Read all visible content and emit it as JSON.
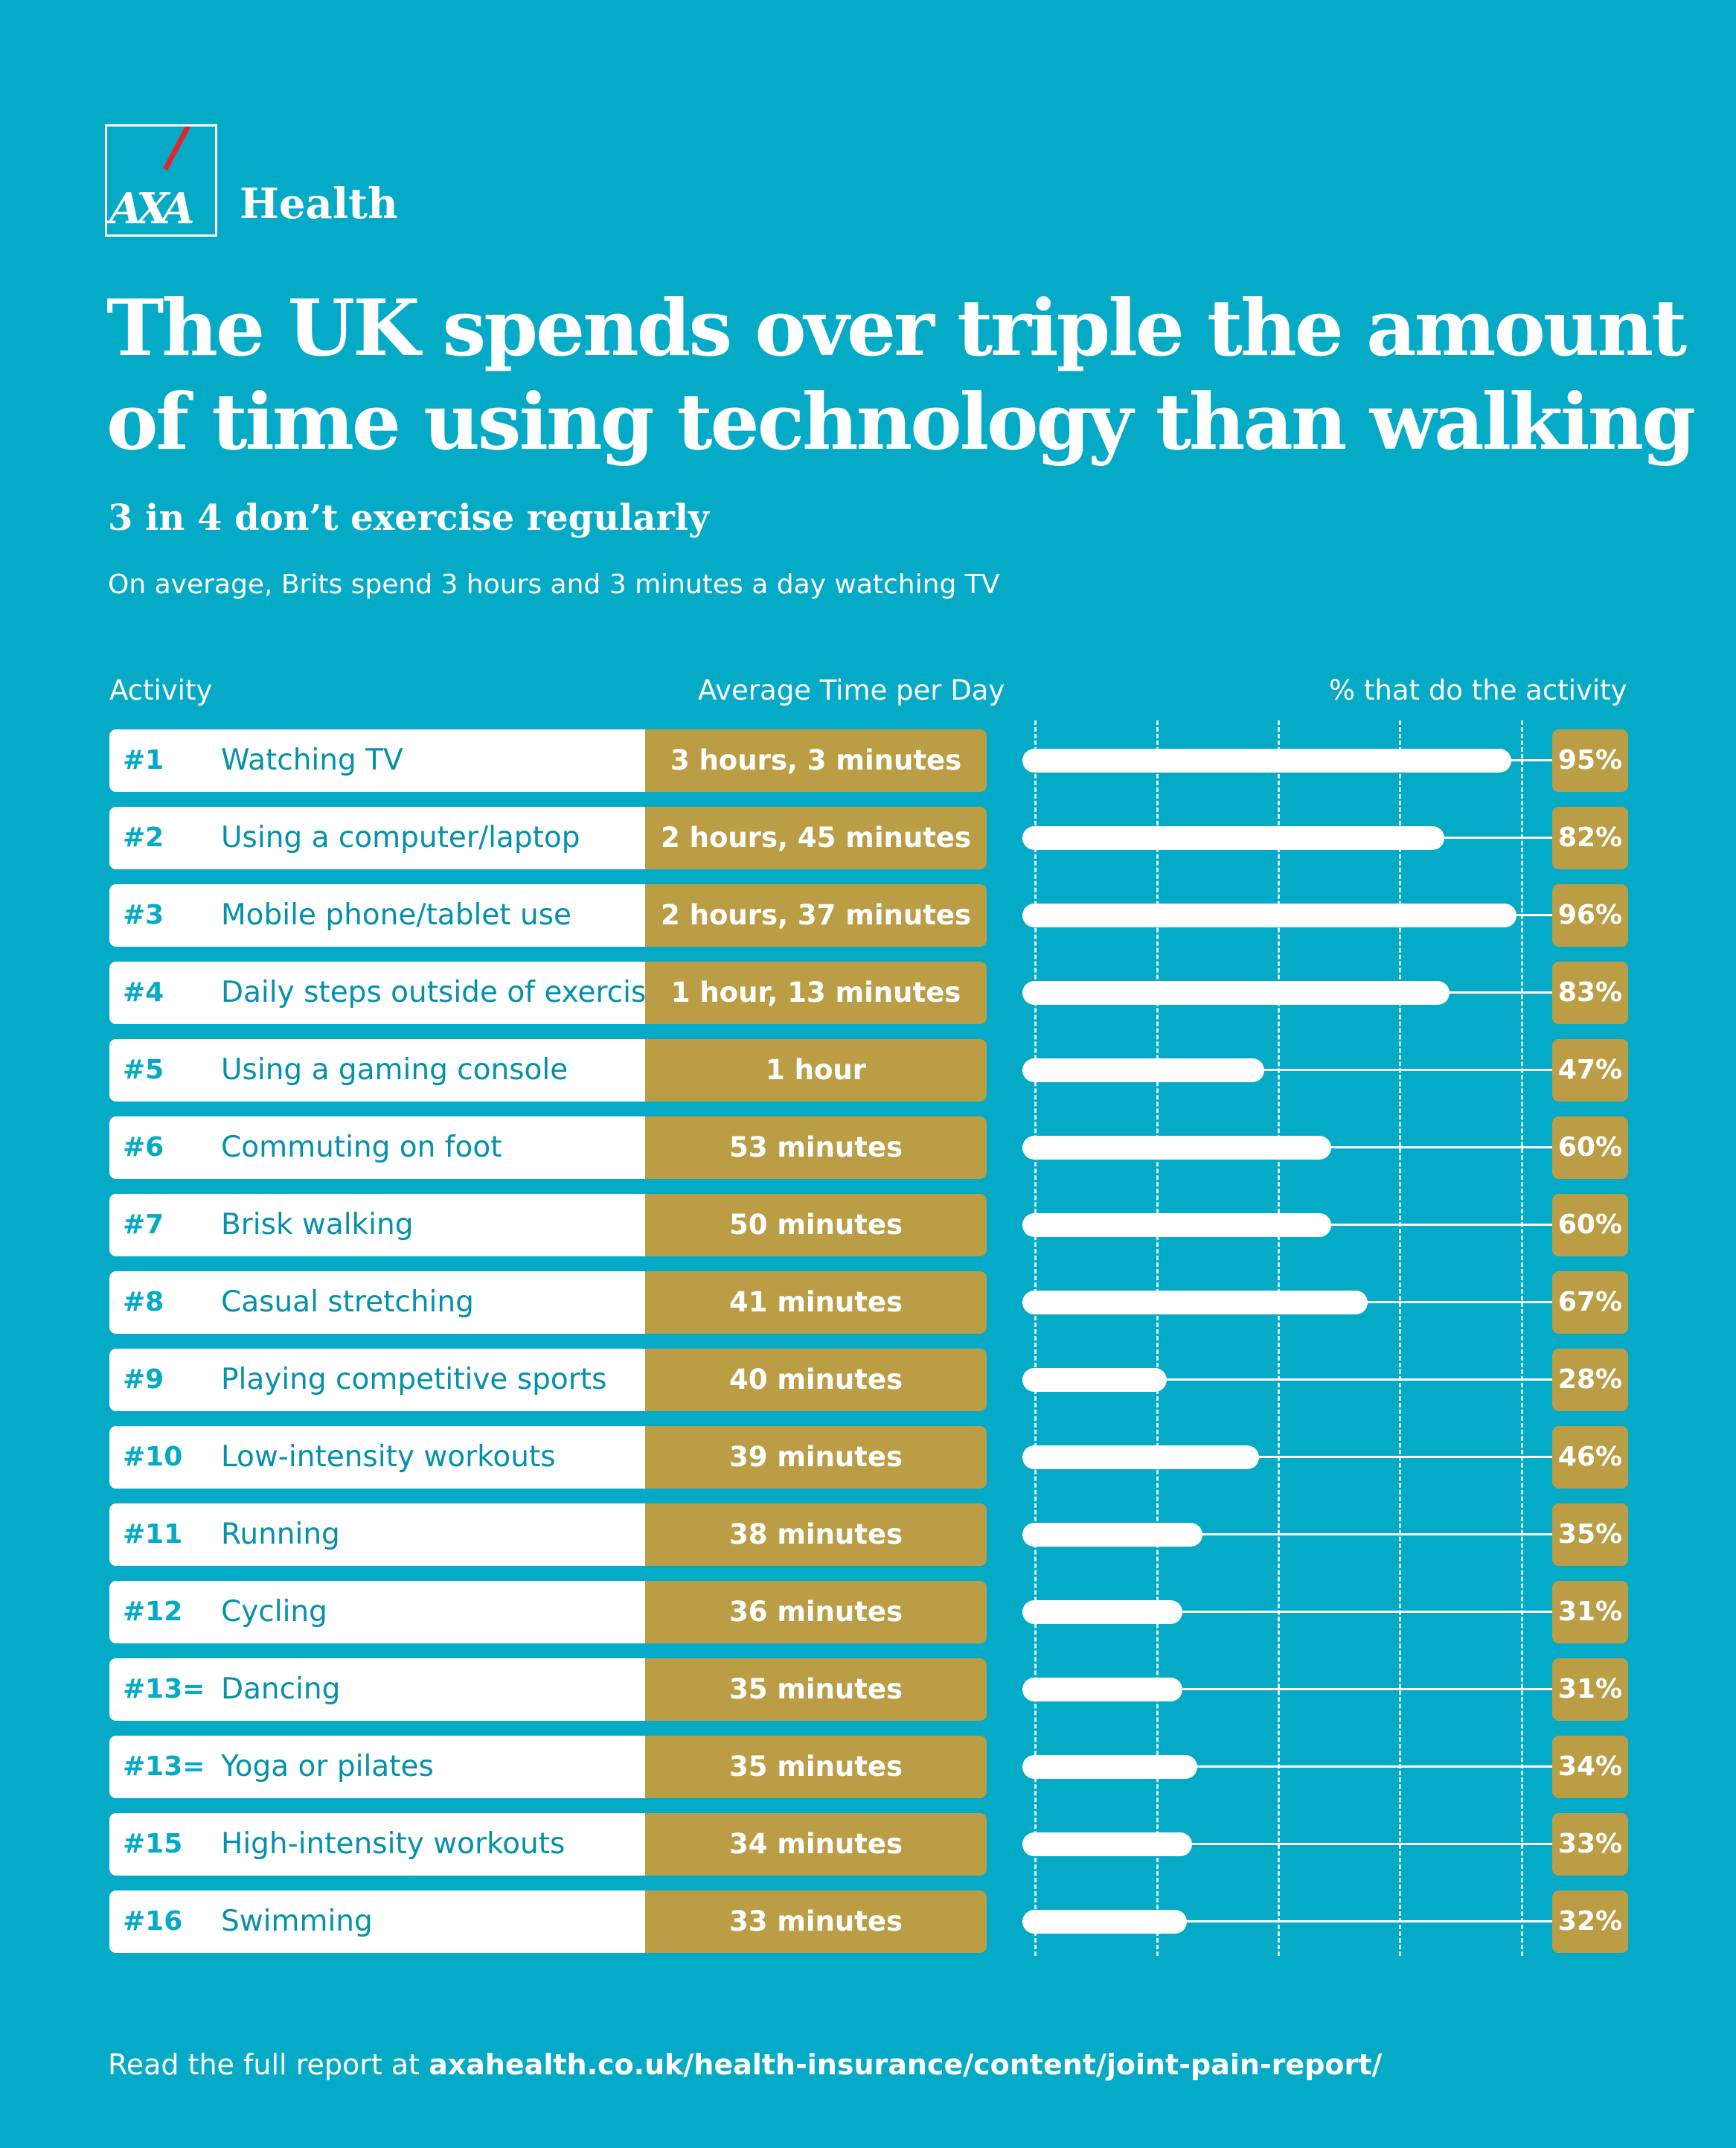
{
  "brand": {
    "logo_text": "AXA",
    "name": "Health"
  },
  "title_lines": [
    "The UK spends over triple the amount",
    "of time using technology than walking"
  ],
  "subtitle": "3 in 4 don’t exercise regularly",
  "note": "On average, Brits spend 3 hours and 3 minutes a day watching TV",
  "colors": {
    "background": "#05AAC6",
    "gold": "#BB9D46",
    "white": "#FFFFFF",
    "logo_red": "#E3242B"
  },
  "chart_data": {
    "type": "bar",
    "orientation": "horizontal",
    "title": "The UK spends over triple the amount of time using technology than walking",
    "column_headers": {
      "activity": "Activity",
      "time": "Average Time per Day",
      "percent": "% that do the activity"
    },
    "xlim": [
      0,
      100
    ],
    "grid": true,
    "rows": [
      {
        "rank": "#1",
        "activity": "Watching TV",
        "time": "3 hours, 3 minutes",
        "percent": 95,
        "percent_label": "95%"
      },
      {
        "rank": "#2",
        "activity": "Using a computer/laptop",
        "time": "2 hours, 45 minutes",
        "percent": 82,
        "percent_label": "82%"
      },
      {
        "rank": "#3",
        "activity": "Mobile phone/tablet use",
        "time": "2 hours, 37 minutes",
        "percent": 96,
        "percent_label": "96%"
      },
      {
        "rank": "#4",
        "activity": "Daily steps outside of exercise",
        "time": "1 hour, 13 minutes",
        "percent": 83,
        "percent_label": "83%"
      },
      {
        "rank": "#5",
        "activity": "Using a gaming console",
        "time": "1 hour",
        "percent": 47,
        "percent_label": "47%"
      },
      {
        "rank": "#6",
        "activity": "Commuting on foot",
        "time": "53 minutes",
        "percent": 60,
        "percent_label": "60%"
      },
      {
        "rank": "#7",
        "activity": "Brisk walking",
        "time": "50 minutes",
        "percent": 60,
        "percent_label": "60%"
      },
      {
        "rank": "#8",
        "activity": "Casual stretching",
        "time": "41 minutes",
        "percent": 67,
        "percent_label": "67%"
      },
      {
        "rank": "#9",
        "activity": "Playing competitive sports",
        "time": "40 minutes",
        "percent": 28,
        "percent_label": "28%"
      },
      {
        "rank": "#10",
        "activity": "Low-intensity workouts",
        "time": "39 minutes",
        "percent": 46,
        "percent_label": "46%"
      },
      {
        "rank": "#11",
        "activity": "Running",
        "time": "38 minutes",
        "percent": 35,
        "percent_label": "35%"
      },
      {
        "rank": "#12",
        "activity": "Cycling",
        "time": "36 minutes",
        "percent": 31,
        "percent_label": "31%"
      },
      {
        "rank": "#13=",
        "activity": "Dancing",
        "time": "35 minutes",
        "percent": 31,
        "percent_label": "31%"
      },
      {
        "rank": "#13=",
        "activity": "Yoga or pilates",
        "time": "35 minutes",
        "percent": 34,
        "percent_label": "34%"
      },
      {
        "rank": "#15",
        "activity": "High-intensity workouts",
        "time": "34 minutes",
        "percent": 33,
        "percent_label": "33%"
      },
      {
        "rank": "#16",
        "activity": "Swimming",
        "time": "33 minutes",
        "percent": 32,
        "percent_label": "32%"
      }
    ]
  },
  "footer": {
    "prefix": "Read the full report at ",
    "link": "axahealth.co.uk/health-insurance/content/joint-pain-report/"
  }
}
